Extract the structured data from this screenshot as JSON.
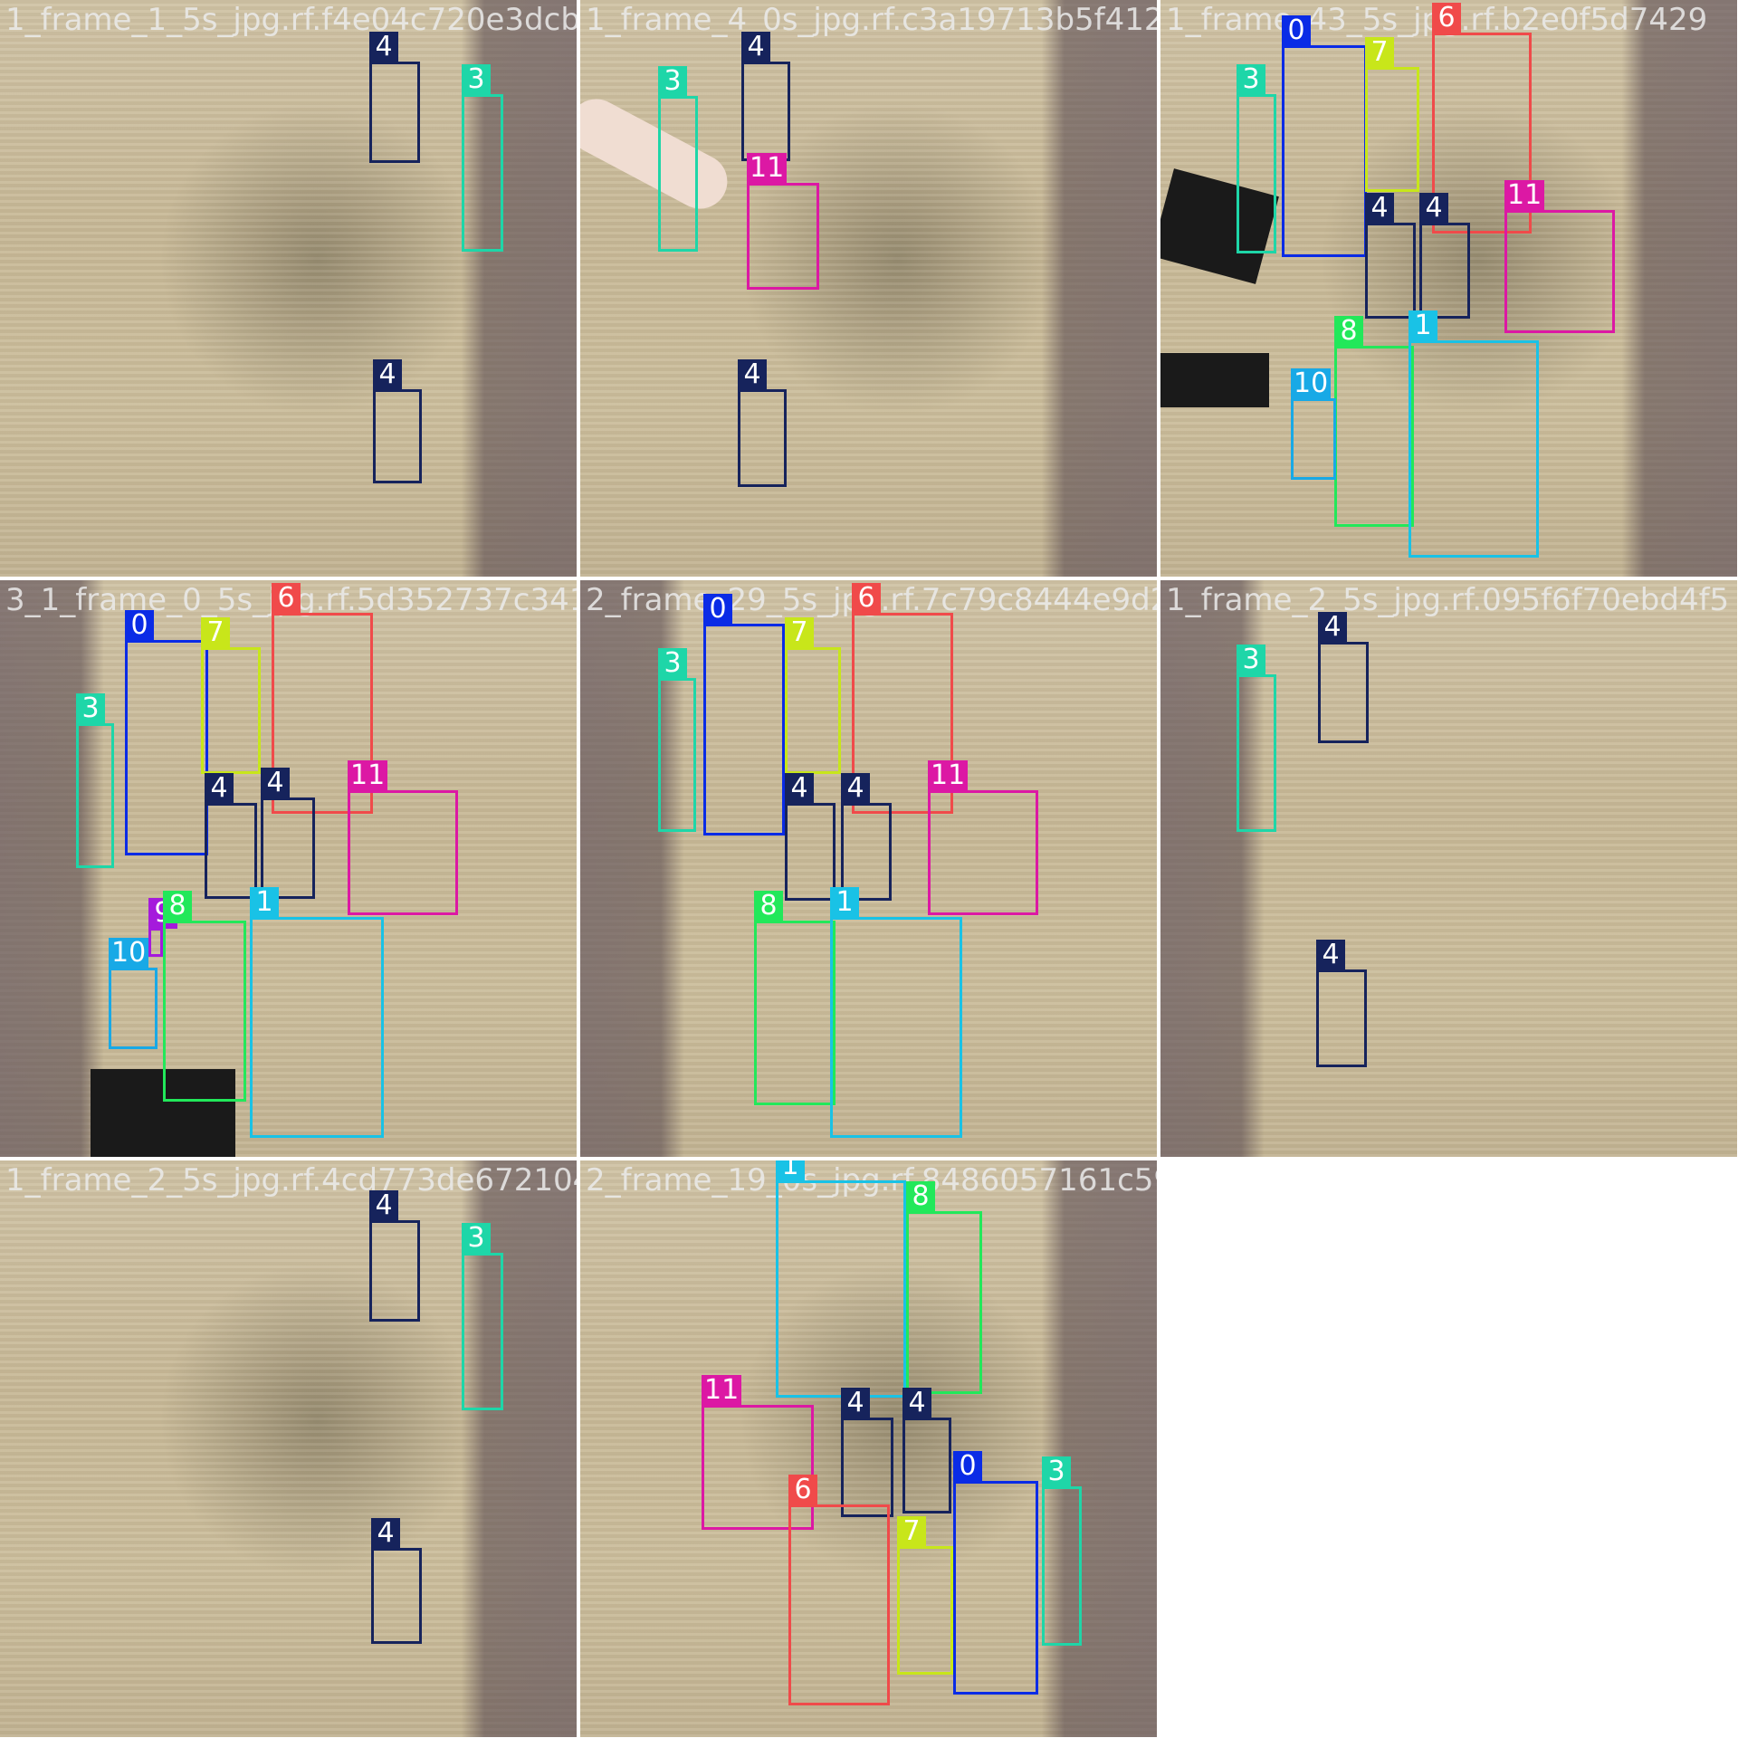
{
  "colors": {
    "0": "#0a2be6",
    "1": "#19c2e6",
    "3": "#1ed6a8",
    "4": "#16235c",
    "6": "#f04a4a",
    "7": "#c8e61a",
    "8": "#22e85a",
    "9": "#a51adc",
    "10": "#18a9e6",
    "11": "#dc18a4"
  },
  "tiles": [
    {
      "filename": "1_frame_1_5s_jpg.rf.f4e04c720e3dcb713114",
      "boxes": [
        {
          "label": "4"
        },
        {
          "label": "3"
        },
        {
          "label": "4"
        }
      ]
    },
    {
      "filename": "1_frame_4_0s_jpg.rf.c3a19713b5f412591bd",
      "boxes": [
        {
          "label": "3"
        },
        {
          "label": "4"
        },
        {
          "label": "11"
        },
        {
          "label": "4"
        }
      ]
    },
    {
      "filename": "1_frame_43_5s_jpg.rf.b2e0f5d7429",
      "boxes": [
        {
          "label": "3"
        },
        {
          "label": "0"
        },
        {
          "label": "7"
        },
        {
          "label": "6"
        },
        {
          "label": "4"
        },
        {
          "label": "4"
        },
        {
          "label": "11"
        },
        {
          "label": "8"
        },
        {
          "label": "1"
        },
        {
          "label": "10"
        }
      ]
    },
    {
      "filename": "3_1_frame_0_5s_jpg.rf.5d352737c3412154d",
      "boxes": [
        {
          "label": "0"
        },
        {
          "label": "7"
        },
        {
          "label": "6"
        },
        {
          "label": "3"
        },
        {
          "label": "4"
        },
        {
          "label": "4"
        },
        {
          "label": "11"
        },
        {
          "label": "9"
        },
        {
          "label": "8"
        },
        {
          "label": "10"
        },
        {
          "label": "1"
        }
      ]
    },
    {
      "filename": "2_frame_29_5s_jpg.rf.7c79c8444e9d2b984",
      "boxes": [
        {
          "label": "0"
        },
        {
          "label": "7"
        },
        {
          "label": "6"
        },
        {
          "label": "3"
        },
        {
          "label": "4"
        },
        {
          "label": "4"
        },
        {
          "label": "11"
        },
        {
          "label": "8"
        },
        {
          "label": "1"
        }
      ]
    },
    {
      "filename": "1_frame_2_5s_jpg.rf.095f6f70ebd4f5",
      "boxes": [
        {
          "label": "3"
        },
        {
          "label": "4"
        },
        {
          "label": "4"
        }
      ]
    },
    {
      "filename": "1_frame_2_5s_jpg.rf.4cd773de672104",
      "boxes": [
        {
          "label": "4"
        },
        {
          "label": "3"
        },
        {
          "label": "4"
        }
      ]
    },
    {
      "filename": "2_frame_19_0s_jpg.rf.8486057161c59e9be",
      "boxes": [
        {
          "label": "1"
        },
        {
          "label": "8"
        },
        {
          "label": "11"
        },
        {
          "label": "4"
        },
        {
          "label": "4"
        },
        {
          "label": "6"
        },
        {
          "label": "0"
        },
        {
          "label": "3"
        },
        {
          "label": "7"
        }
      ]
    }
  ]
}
